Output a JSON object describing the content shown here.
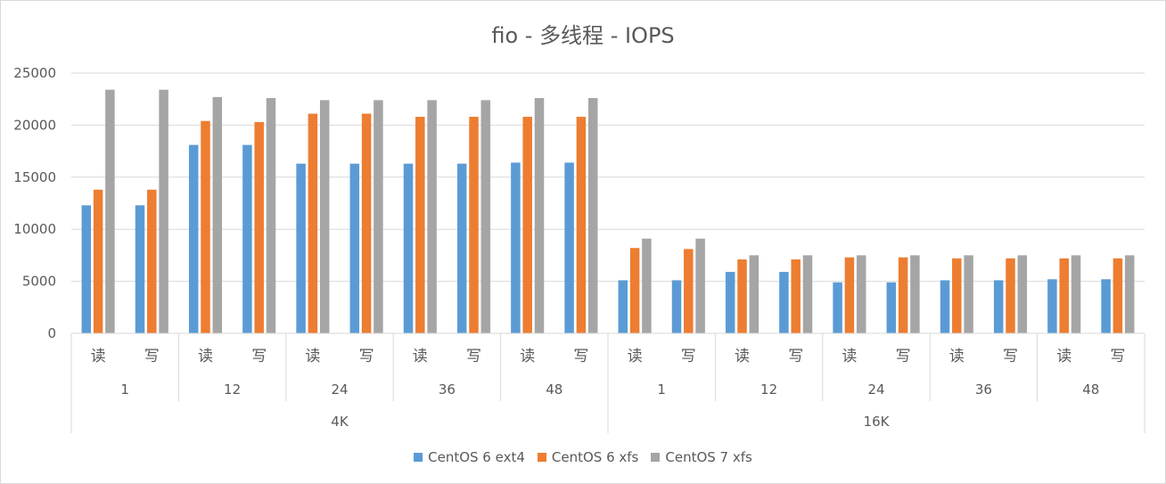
{
  "chart_data": {
    "type": "bar",
    "title": "fio - 多线程 - IOPS",
    "ylim": [
      0,
      25000
    ],
    "yticks": [
      0,
      5000,
      10000,
      15000,
      20000,
      25000
    ],
    "grid": true,
    "legend_position": "bottom",
    "groups": [
      {
        "label": "4K",
        "threads": [
          {
            "label": "1",
            "ops": [
              "读",
              "写"
            ]
          },
          {
            "label": "12",
            "ops": [
              "读",
              "写"
            ]
          },
          {
            "label": "24",
            "ops": [
              "读",
              "写"
            ]
          },
          {
            "label": "36",
            "ops": [
              "读",
              "写"
            ]
          },
          {
            "label": "48",
            "ops": [
              "读",
              "写"
            ]
          }
        ]
      },
      {
        "label": "16K",
        "threads": [
          {
            "label": "1",
            "ops": [
              "读",
              "写"
            ]
          },
          {
            "label": "12",
            "ops": [
              "读",
              "写"
            ]
          },
          {
            "label": "24",
            "ops": [
              "读",
              "写"
            ]
          },
          {
            "label": "36",
            "ops": [
              "读",
              "写"
            ]
          },
          {
            "label": "48",
            "ops": [
              "读",
              "写"
            ]
          }
        ]
      }
    ],
    "series": [
      {
        "name": "CentOS 6 ext4",
        "color": "#5b9bd5",
        "values": [
          12300,
          12300,
          18100,
          18100,
          16300,
          16300,
          16300,
          16300,
          16400,
          16400,
          5100,
          5100,
          5900,
          5900,
          4900,
          4900,
          5100,
          5100,
          5200,
          5200
        ]
      },
      {
        "name": "CentOS 6 xfs",
        "color": "#ed7d31",
        "values": [
          13800,
          13800,
          20400,
          20300,
          21100,
          21100,
          20800,
          20800,
          20800,
          20800,
          8200,
          8100,
          7100,
          7100,
          7300,
          7300,
          7200,
          7200,
          7200,
          7200
        ]
      },
      {
        "name": "CentOS 7 xfs",
        "color": "#a5a5a5",
        "values": [
          23400,
          23400,
          22700,
          22600,
          22400,
          22400,
          22400,
          22400,
          22600,
          22600,
          9100,
          9100,
          7500,
          7500,
          7500,
          7500,
          7500,
          7500,
          7500,
          7500
        ]
      }
    ]
  }
}
